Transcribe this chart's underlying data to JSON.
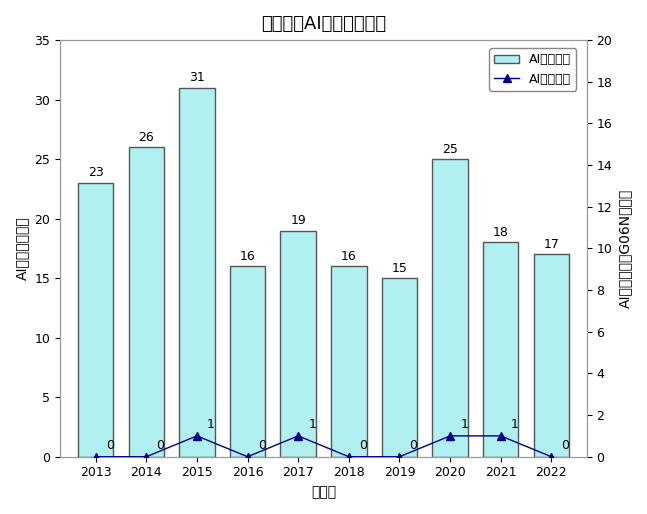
{
  "title": "秋田県のAI関連特許出願",
  "years": [
    2013,
    2014,
    2015,
    2016,
    2017,
    2018,
    2019,
    2020,
    2021,
    2022
  ],
  "ai_related": [
    23,
    26,
    31,
    16,
    19,
    16,
    15,
    25,
    18,
    17
  ],
  "ai_core": [
    0,
    0,
    1,
    0,
    1,
    0,
    0,
    1,
    1,
    0
  ],
  "bar_color": "#b0f0f0",
  "bar_edgecolor": "#555555",
  "line_color": "#00008b",
  "marker_color": "#00008b",
  "marker_style": "^",
  "marker_size": 6,
  "ylabel_left": "AI関連発明／件",
  "ylabel_right": "AIコア発明（G06N）／件",
  "xlabel": "出願年",
  "ylim_left": [
    0,
    35
  ],
  "ylim_right": [
    0,
    20
  ],
  "yticks_left": [
    0,
    5,
    10,
    15,
    20,
    25,
    30,
    35
  ],
  "yticks_right": [
    0,
    2,
    4,
    6,
    8,
    10,
    12,
    14,
    16,
    18,
    20
  ],
  "legend_ai_related": "AI関連発明",
  "legend_ai_core": "AIコア発明",
  "background_color": "#ffffff",
  "title_fontsize": 13,
  "label_fontsize": 10,
  "tick_fontsize": 9,
  "annotation_fontsize": 9,
  "figsize": [
    6.47,
    5.14
  ],
  "dpi": 100
}
